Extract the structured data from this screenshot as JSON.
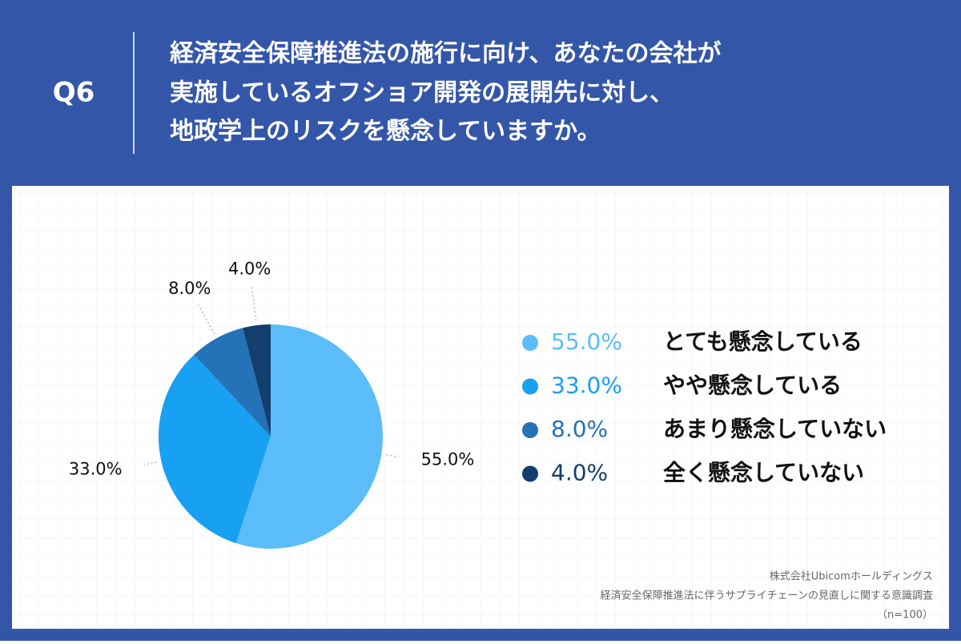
{
  "header": {
    "label": "Q6",
    "title_lines": [
      "経済安全保障推進法の施行に向け、あなたの会社が",
      "実施しているオフショア開発の展開先に対し、",
      "地政学上のリスクを懸念していますか。"
    ]
  },
  "chart_data": {
    "type": "pie",
    "categories": [
      "とても懸念している",
      "やや懸念している",
      "あまり懸念していない",
      "全く懸念していない"
    ],
    "values": [
      55,
      33,
      8,
      4
    ],
    "value_labels": [
      "55.0%",
      "33.0%",
      "8.0%",
      "4.0%"
    ],
    "colors": [
      "#5bbdf9",
      "#18a0f3",
      "#2472b8",
      "#123f6e"
    ]
  },
  "source": [
    "株式会社Ubicomホールディングス",
    "経済安全保障推進法に伴うサプライチェーンの見直しに関する意識調査",
    "（n=100）"
  ]
}
